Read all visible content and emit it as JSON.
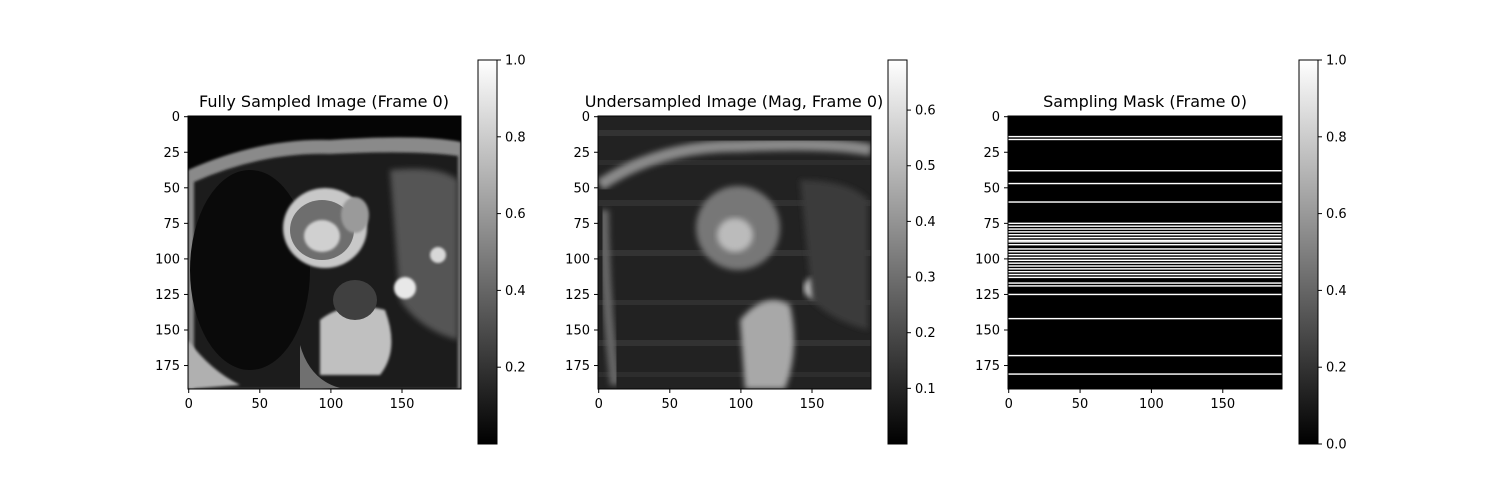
{
  "panels": [
    {
      "id": "fully-sampled",
      "title": "Fully Sampled Image (Frame 0)",
      "x_ticks": [
        "0",
        "50",
        "100",
        "150"
      ],
      "y_ticks": [
        "0",
        "25",
        "50",
        "75",
        "100",
        "125",
        "150",
        "175"
      ],
      "colorbar": {
        "min": 0.0,
        "max": 1.0,
        "ticks": [
          "0.2",
          "0.4",
          "0.6",
          "0.8",
          "1.0"
        ],
        "tick_values": [
          0.2,
          0.4,
          0.6,
          0.8,
          1.0
        ]
      }
    },
    {
      "id": "undersampled",
      "title": "Undersampled Image (Mag, Frame 0)",
      "x_ticks": [
        "0",
        "50",
        "100",
        "150"
      ],
      "y_ticks": [
        "0",
        "25",
        "50",
        "75",
        "100",
        "125",
        "150",
        "175"
      ],
      "colorbar": {
        "min": 0.0,
        "max": 0.69,
        "ticks": [
          "0.1",
          "0.2",
          "0.3",
          "0.4",
          "0.5",
          "0.6"
        ],
        "tick_values": [
          0.1,
          0.2,
          0.3,
          0.4,
          0.5,
          0.6
        ]
      }
    },
    {
      "id": "sampling-mask",
      "title": "Sampling Mask (Frame 0)",
      "x_ticks": [
        "0",
        "50",
        "100",
        "150"
      ],
      "y_ticks": [
        "0",
        "25",
        "50",
        "75",
        "100",
        "125",
        "150",
        "175"
      ],
      "colorbar": {
        "min": 0.0,
        "max": 1.0,
        "ticks": [
          "0.0",
          "0.2",
          "0.4",
          "0.6",
          "0.8",
          "1.0"
        ],
        "tick_values": [
          0.0,
          0.2,
          0.4,
          0.6,
          0.8,
          1.0
        ]
      }
    }
  ],
  "image_size": [
    192,
    192
  ],
  "mask_rows": [
    14,
    16,
    38,
    47,
    60,
    75,
    77,
    79,
    81,
    83,
    85,
    87,
    88,
    90,
    93,
    95,
    97,
    99,
    101,
    103,
    105,
    107,
    109,
    111,
    113,
    117,
    119,
    125,
    142,
    168,
    181
  ]
}
